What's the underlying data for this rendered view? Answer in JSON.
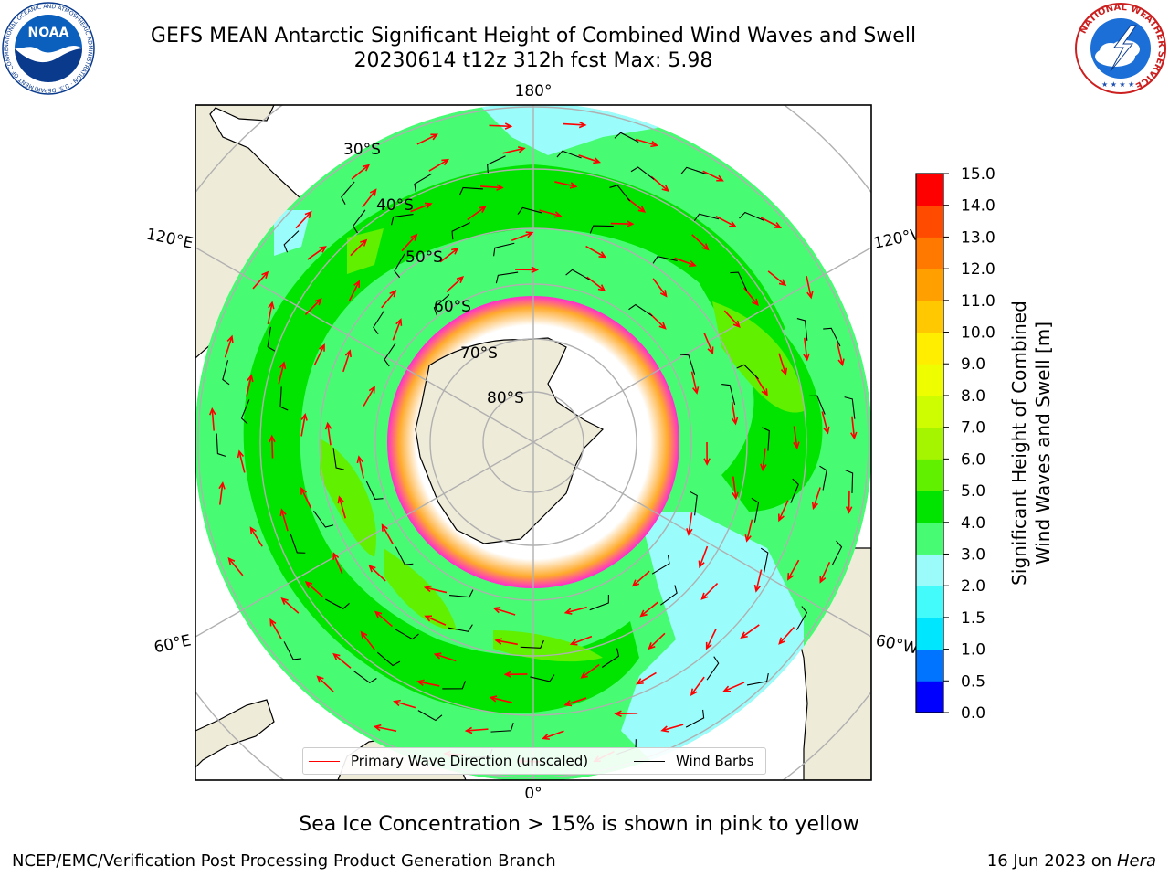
{
  "header": {
    "title_line1": "GEFS MEAN Antarctic Significant Height of Combined Wind Waves and Swell",
    "title_line2": "20230614 t12z 312h fcst   Max: 5.98"
  },
  "logos": {
    "noaa_text": "NOAA",
    "noaa_ring": "NATIONAL OCEANIC AND ATMOSPHERIC ADMINISTRATION · U.S. DEPARTMENT OF COMMERCE",
    "nws_ring": "NATIONAL WEATHER SERVICE"
  },
  "map": {
    "projection": "south polar stereographic",
    "longitude_labels": {
      "top": "180°",
      "upper_left": "120°E",
      "upper_right": "120°W",
      "lower_left": "60°E",
      "lower_right": "60°W",
      "bottom": "0°"
    },
    "latitude_labels": [
      "30°S",
      "40°S",
      "50°S",
      "60°S",
      "70°S",
      "80°S"
    ],
    "legend": {
      "wave_direction": "Primary Wave Direction (unscaled)",
      "wind_barbs": "Wind Barbs"
    },
    "colors": {
      "land": "#efebd9",
      "ocean_light": "#9bfcfc",
      "ocean_3m": "#47fc72",
      "ocean_4m": "#00e400",
      "ocean_5m": "#61f000",
      "sea_ice": "#ff2ccf",
      "ice_edge": "#ffaa2c",
      "arrow": "#ff0000",
      "barb": "#000000"
    }
  },
  "colorbar": {
    "label": "Significant Height of Combined Wind Waves and Swell [m]",
    "label_line1": "Significant Height of Combined",
    "label_line2": "Wind Waves and Swell [m]",
    "ticks": [
      "0.0",
      "0.5",
      "1.0",
      "1.5",
      "2.0",
      "3.0",
      "4.0",
      "5.0",
      "6.0",
      "7.0",
      "8.0",
      "9.0",
      "10.0",
      "11.0",
      "12.0",
      "13.0",
      "14.0",
      "15.0"
    ],
    "colors": [
      "#0000ff",
      "#0073ff",
      "#00e6ff",
      "#44fbfb",
      "#9bfbfb",
      "#47fc72",
      "#00e400",
      "#61f000",
      "#a6f500",
      "#cdfd00",
      "#eefe00",
      "#ffee00",
      "#ffc800",
      "#ffa000",
      "#ff7800",
      "#ff4b00",
      "#ff0000"
    ]
  },
  "footer": {
    "note": "Sea Ice Concentration > 15% is shown in pink to yellow",
    "credit_left": "NCEP/EMC/Verification Post Processing Product Generation Branch",
    "credit_right_date": "16 Jun 2023 on ",
    "credit_right_host": "Hera"
  }
}
